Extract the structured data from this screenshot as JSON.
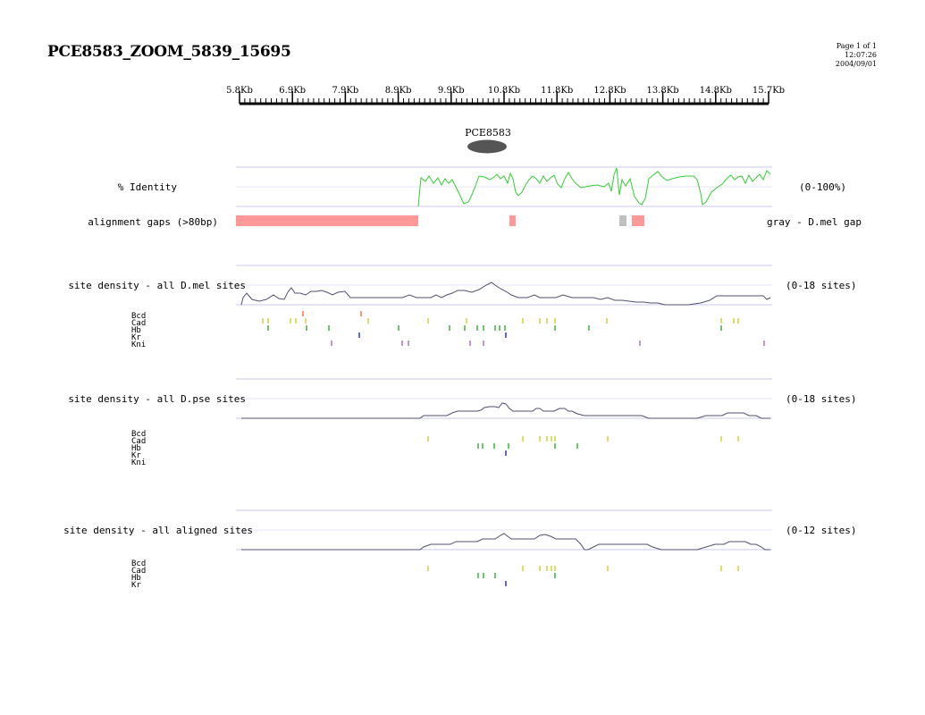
{
  "page": {
    "title": "PCE8583_ZOOM_5839_15695",
    "page_info": "Page 1 of 1",
    "time": "12:07:26",
    "date": "2004/09/01"
  },
  "ruler": {
    "labels": [
      "5.8Kb",
      "6.9Kb",
      "7.9Kb",
      "8.9Kb",
      "9.9Kb",
      "10.8Kb",
      "11.8Kb",
      "12.8Kb",
      "13.8Kb",
      "14.8Kb",
      "15.7Kb"
    ]
  },
  "feature": {
    "label": "PCE8583"
  },
  "tracks": {
    "identity": {
      "label": "% Identity",
      "range": "(0-100%)"
    },
    "gaps": {
      "label": "alignment gaps (>80bp)",
      "note": "gray - D.mel gap"
    },
    "dmel": {
      "label": "site density - all D.mel sites",
      "range": "(0-18 sites)",
      "factors": [
        "Bcd",
        "Cad",
        "Hb",
        "Kr",
        "Kni"
      ]
    },
    "dpse": {
      "label": "site density - all D.pse sites",
      "range": "(0-18 sites)",
      "factors": [
        "Bcd",
        "Cad",
        "Hb",
        "Kr",
        "Kni"
      ]
    },
    "aligned": {
      "label": "site density - all aligned sites",
      "range": "(0-12 sites)",
      "factors": [
        "Bcd",
        "Cad",
        "Hb",
        "Kr"
      ]
    }
  },
  "colors": {
    "identity_line": "#33cc33",
    "gap_block": "#ff9999",
    "dmel_gap_block": "#c0c0c0",
    "density_line": "#505070",
    "track_rule": "#c8c8e8",
    "feature_ellipse": "#555555",
    "Bcd": "#ff6633",
    "Cad": "#cccc33",
    "Hb": "#33aa33",
    "Kr": "#2222cc",
    "Kni": "#aa66cc"
  }
}
